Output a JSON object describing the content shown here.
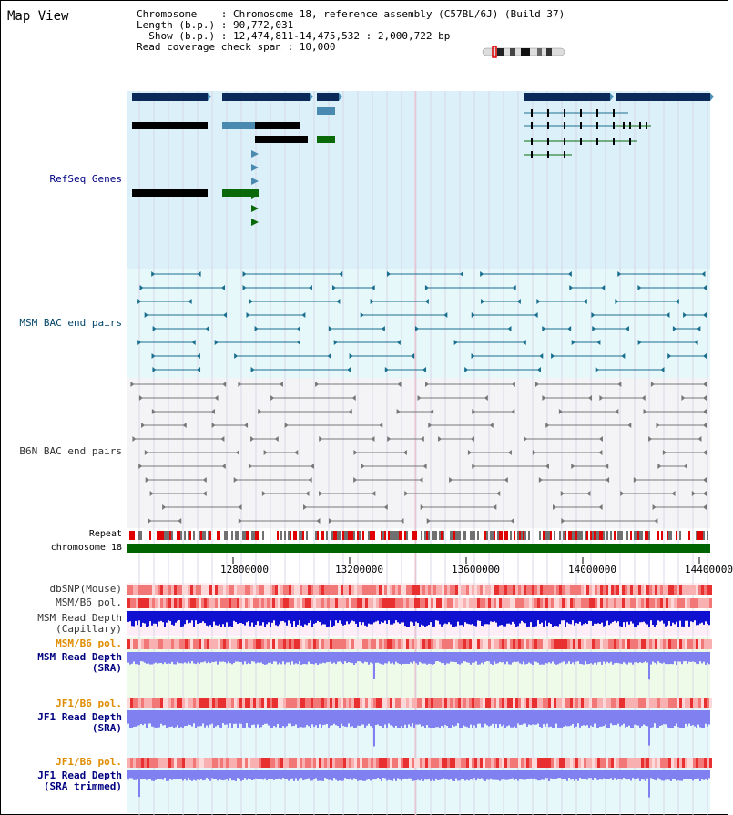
{
  "view_title": "Map View",
  "info": {
    "chromosome": "Chromosome    : Chromosome 18, reference assembly (C57BL/6J) (Build 37)",
    "length": "Length (b.p.) : 90,772,031",
    "show": "Show (b.p.) : 12,474,811-14,475,532 : 2,000,722 bp",
    "span": "Read coverage check span : 10,000"
  },
  "labels": {
    "refseq": "RefSeq Genes",
    "msm_bac": "MSM BAC end pairs",
    "b6n_bac": "B6N BAC end pairs",
    "repeat": "Repeat",
    "chromosome": "chromosome 18",
    "dbsnp": "dbSNP(Mouse)",
    "msm_pol": "MSM/B6 pol.",
    "msm_depth_cap": "MSM Read Depth\n(Capillary)",
    "msm_pol2": "MSM/B6 pol.",
    "msm_depth_sra": "MSM Read Depth\n(SRA)",
    "jf1_pol": "JF1/B6 pol.",
    "jf1_depth_sra": "JF1 Read Depth\n(SRA)",
    "jf1_pol2": "JF1/B6 pol.",
    "jf1_depth_trim": "JF1 Read Depth\n(SRA trimmed)"
  },
  "axis": {
    "ticks": [
      "12800000",
      "13200000",
      "13600000",
      "14000000",
      "14400000"
    ]
  },
  "colors": {
    "refseq_bg": "#dcf0fa",
    "msm_bg": "#e6f8fa",
    "b6n_bg": "#f4f4f6",
    "gene_dark": "#0b2a5a",
    "msm_line": "#1a6e8e",
    "b6n_line": "#777777",
    "chrom": "#006400",
    "depth_blue": "#1010d0",
    "depth_light": "#8080f0",
    "label_blue": "#000080",
    "label_orange": "#e08c00",
    "label_teal": "#004466"
  }
}
